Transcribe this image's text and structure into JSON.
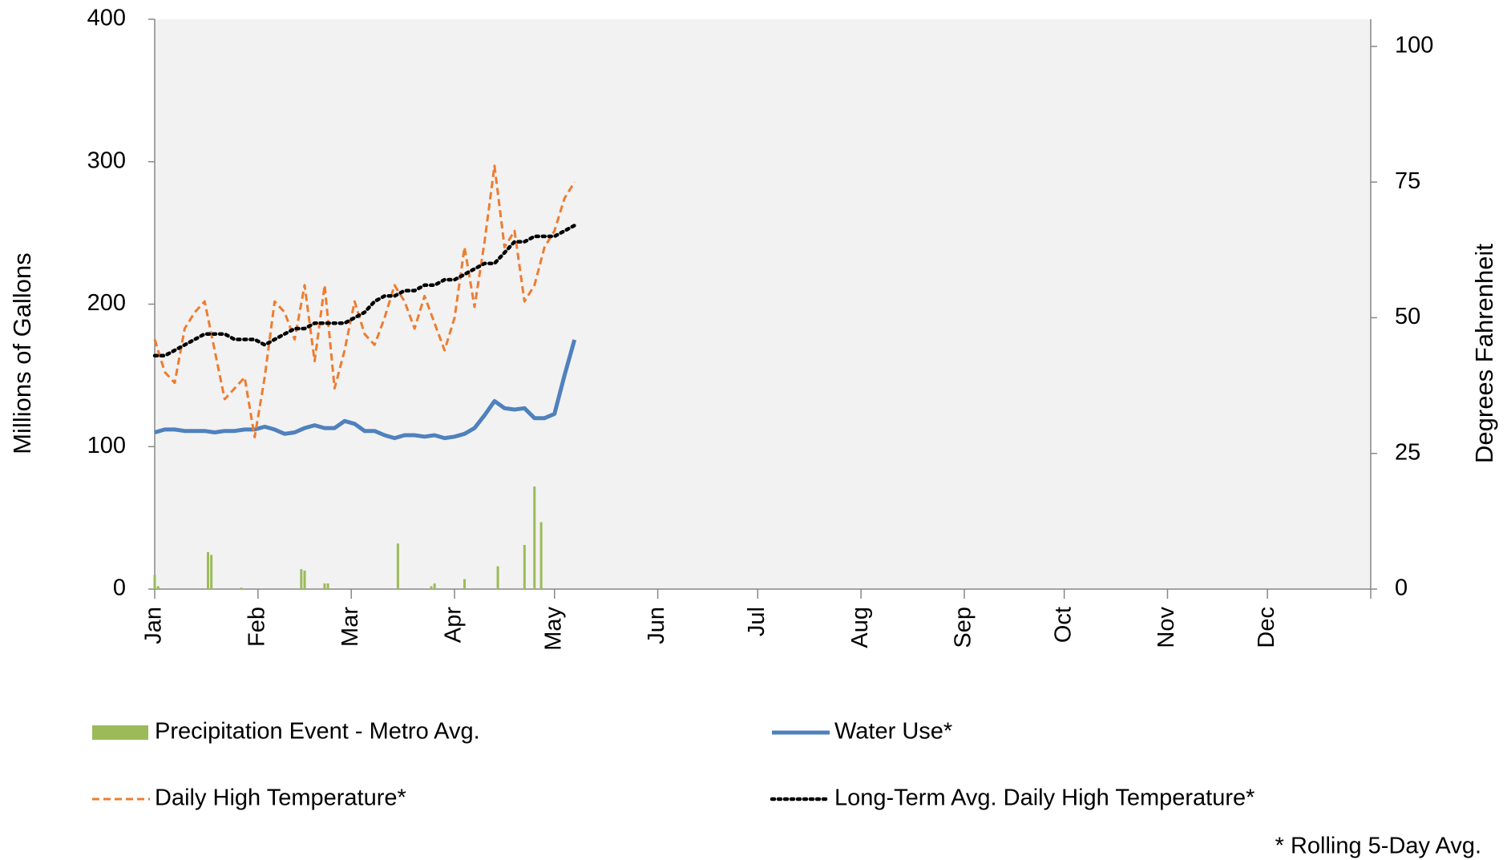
{
  "chart_data": {
    "type": "line",
    "y_label": "Millions of Gallons",
    "y2_label": "Degrees  Fahrenheit",
    "footnote": "* Rolling 5-Day Avg.",
    "background": "#f2f2f2",
    "xlim": [
      0,
      365
    ],
    "xticks": [
      {
        "value": 0,
        "label": "Jan"
      },
      {
        "value": 31,
        "label": "Feb"
      },
      {
        "value": 59,
        "label": "Mar"
      },
      {
        "value": 90,
        "label": "Apr"
      },
      {
        "value": 120,
        "label": "May"
      },
      {
        "value": 151,
        "label": "Jun"
      },
      {
        "value": 181,
        "label": "Jul"
      },
      {
        "value": 212,
        "label": "Aug"
      },
      {
        "value": 243,
        "label": "Sep"
      },
      {
        "value": 273,
        "label": "Oct"
      },
      {
        "value": 304,
        "label": "Nov"
      },
      {
        "value": 334,
        "label": "Dec"
      }
    ],
    "ylim": [
      0,
      400
    ],
    "yticks": [
      0,
      100,
      200,
      300,
      400
    ],
    "y2lim": [
      0,
      105
    ],
    "y2ticks": [
      0,
      25,
      50,
      75,
      100
    ],
    "x": [
      0,
      3,
      6,
      9,
      12,
      15,
      18,
      21,
      24,
      27,
      30,
      33,
      36,
      39,
      42,
      45,
      48,
      51,
      54,
      57,
      60,
      63,
      66,
      69,
      72,
      75,
      78,
      81,
      84,
      87,
      90,
      93,
      96,
      99,
      102,
      105,
      108,
      111,
      114,
      117,
      120,
      123,
      126
    ],
    "series": [
      {
        "name": "Precipitation Event - Metro Avg.",
        "kind": "bar",
        "color": "#9bbb59",
        "x": [
          0,
          1,
          16,
          17,
          26,
          44,
          45,
          51,
          52,
          73,
          83,
          84,
          93,
          103,
          111,
          114,
          116
        ],
        "values": [
          10,
          2,
          26,
          24,
          1,
          14,
          13,
          4,
          4,
          32,
          2,
          4,
          7,
          16,
          31,
          72,
          47
        ]
      },
      {
        "name": "Water Use*",
        "kind": "line",
        "dash": "solid",
        "color": "#4f81bd",
        "values": [
          110,
          112,
          112,
          111,
          111,
          111,
          110,
          111,
          111,
          112,
          112,
          114,
          112,
          109,
          110,
          113,
          115,
          113,
          113,
          118,
          116,
          111,
          111,
          108,
          106,
          108,
          108,
          107,
          108,
          106,
          107,
          109,
          113,
          122,
          132,
          127,
          126,
          127,
          120,
          120,
          123,
          150,
          175
        ]
      },
      {
        "name": "Daily High Temperature*",
        "kind": "line",
        "dash": "dashed",
        "axis": "y2",
        "color": "#ed7d31",
        "values": [
          46,
          40,
          38,
          48,
          51,
          53,
          44,
          35,
          37,
          39,
          28,
          39,
          53,
          51,
          46,
          56,
          42,
          56,
          37,
          44,
          53,
          47,
          45,
          50,
          56,
          53,
          48,
          54,
          49,
          44,
          50,
          63,
          52,
          64,
          78,
          63,
          66,
          53,
          56,
          63,
          66,
          72,
          75
        ]
      },
      {
        "name": "Long-Term Avg. Daily High Temperature*",
        "kind": "line",
        "dash": "dotted",
        "axis": "y2",
        "color": "#000000",
        "values": [
          43,
          43,
          44,
          45,
          46,
          47,
          47,
          47,
          46,
          46,
          46,
          45,
          46,
          47,
          48,
          48,
          49,
          49,
          49,
          49,
          50,
          51,
          53,
          54,
          54,
          55,
          55,
          56,
          56,
          57,
          57,
          58,
          59,
          60,
          60,
          62,
          64,
          64,
          65,
          65,
          65,
          66,
          67
        ]
      }
    ]
  }
}
